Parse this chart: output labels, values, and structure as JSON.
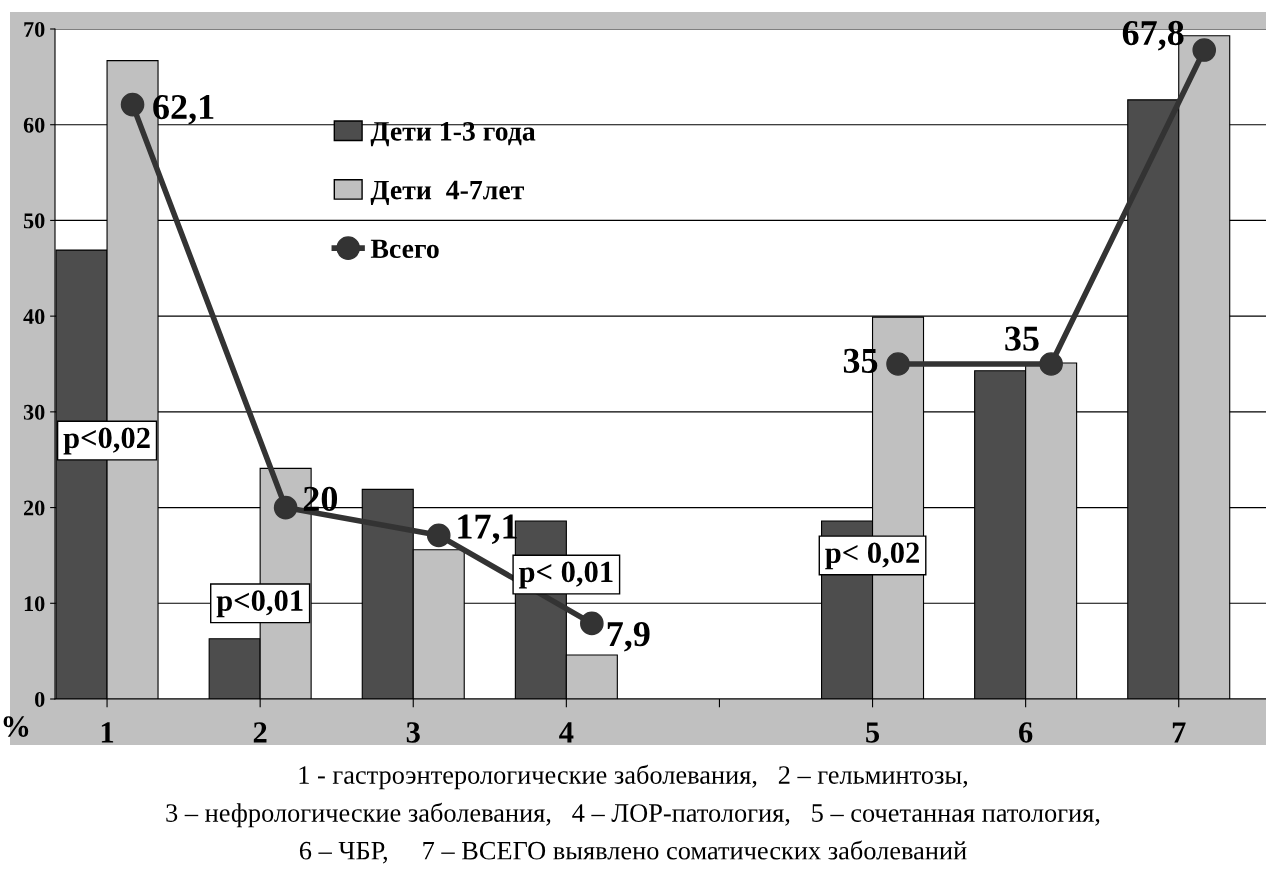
{
  "chart_data": {
    "type": "bar",
    "ylabel": "%",
    "categories": [
      "1",
      "2",
      "3",
      "4",
      null,
      "5",
      "6",
      "7"
    ],
    "series": [
      {
        "name": "Дети 1-3 года",
        "color": "#4d4d4d",
        "values": [
          46.9,
          6.3,
          21.9,
          18.6,
          null,
          18.6,
          34.3,
          62.6
        ]
      },
      {
        "name": "Дети  4-7лет",
        "color": "#c0c0c0",
        "values": [
          66.7,
          24.1,
          15.6,
          4.6,
          null,
          39.9,
          35.1,
          69.3
        ]
      },
      {
        "name": "Всего",
        "type": "line",
        "color": "#333333",
        "marker": "circle",
        "values": [
          62.1,
          20,
          17.1,
          7.9,
          null,
          35,
          35,
          67.8
        ],
        "value_labels": [
          "62,1",
          "20",
          "17,1",
          "7,9",
          null,
          "35",
          "35",
          "67,8"
        ]
      }
    ],
    "ylim": [
      0,
      70
    ],
    "yticks": [
      0,
      10,
      20,
      30,
      40,
      50,
      60,
      70
    ],
    "grid": "y",
    "legend": "top",
    "annotations": [
      {
        "text": "p<0,02",
        "x": "1",
        "y": 27
      },
      {
        "text": "p<0,01",
        "x": "2",
        "y": 10
      },
      {
        "text": "p< 0,01",
        "x": "4",
        "y": 13
      },
      {
        "text": "p< 0,02",
        "x": "5",
        "y": 15
      },
      "1 - гастроэнтерологические заболевания,   2 – гельминтозы,",
      "3 – нефрологические заболевания,   4 – ЛОР-патология,   5 – сочетанная патология,",
      "6 – ЧБР,     7 – ВСЕГО выявлено соматических заболеваний"
    ]
  }
}
